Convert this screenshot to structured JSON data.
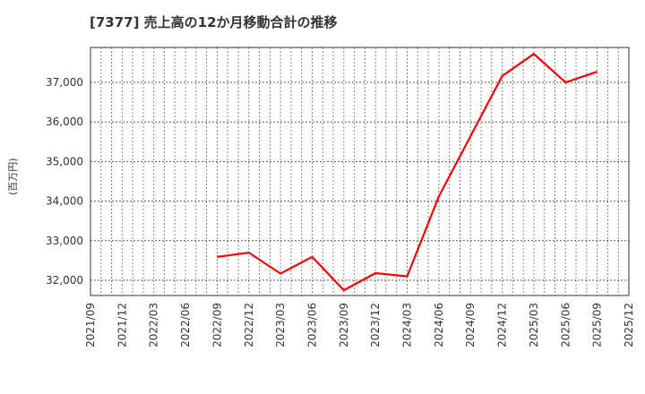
{
  "title": "[7377]  売上高の12か月移動合計の推移",
  "y_axis_label": "(百万円)",
  "colors": {
    "line": "#ff0000",
    "grid": "#888888",
    "axis": "#333333",
    "background": "#ffffff"
  },
  "chart_data": {
    "type": "line",
    "title": "[7377]  売上高の12か月移動合計の推移",
    "xlabel": "",
    "ylabel": "(百万円)",
    "x_ticks": [
      "2021/09",
      "2021/12",
      "2022/03",
      "2022/06",
      "2022/09",
      "2022/12",
      "2023/03",
      "2023/06",
      "2023/09",
      "2023/12",
      "2024/03",
      "2024/06",
      "2024/09",
      "2024/12",
      "2025/03",
      "2025/06",
      "2025/09",
      "2025/12"
    ],
    "y_ticks": [
      "32,000",
      "33,000",
      "34,000",
      "35,000",
      "36,000",
      "37,000"
    ],
    "y_tick_values": [
      32000,
      33000,
      34000,
      35000,
      36000,
      37000
    ],
    "ylim": [
      31600,
      38850
    ],
    "grid": true,
    "legend": null,
    "series": [
      {
        "name": "売上高の12か月移動合計",
        "color": "#ff0000",
        "x": [
          "2022/09",
          "2022/12",
          "2023/03",
          "2023/06",
          "2023/09",
          "2023/12",
          "2024/03",
          "2024/06",
          "2024/09",
          "2024/12",
          "2025/03",
          "2025/06",
          "2025/09"
        ],
        "values": [
          32590,
          32700,
          32170,
          32590,
          31750,
          32180,
          32100,
          34120,
          35640,
          37160,
          37720,
          37000,
          37270
        ]
      }
    ]
  }
}
